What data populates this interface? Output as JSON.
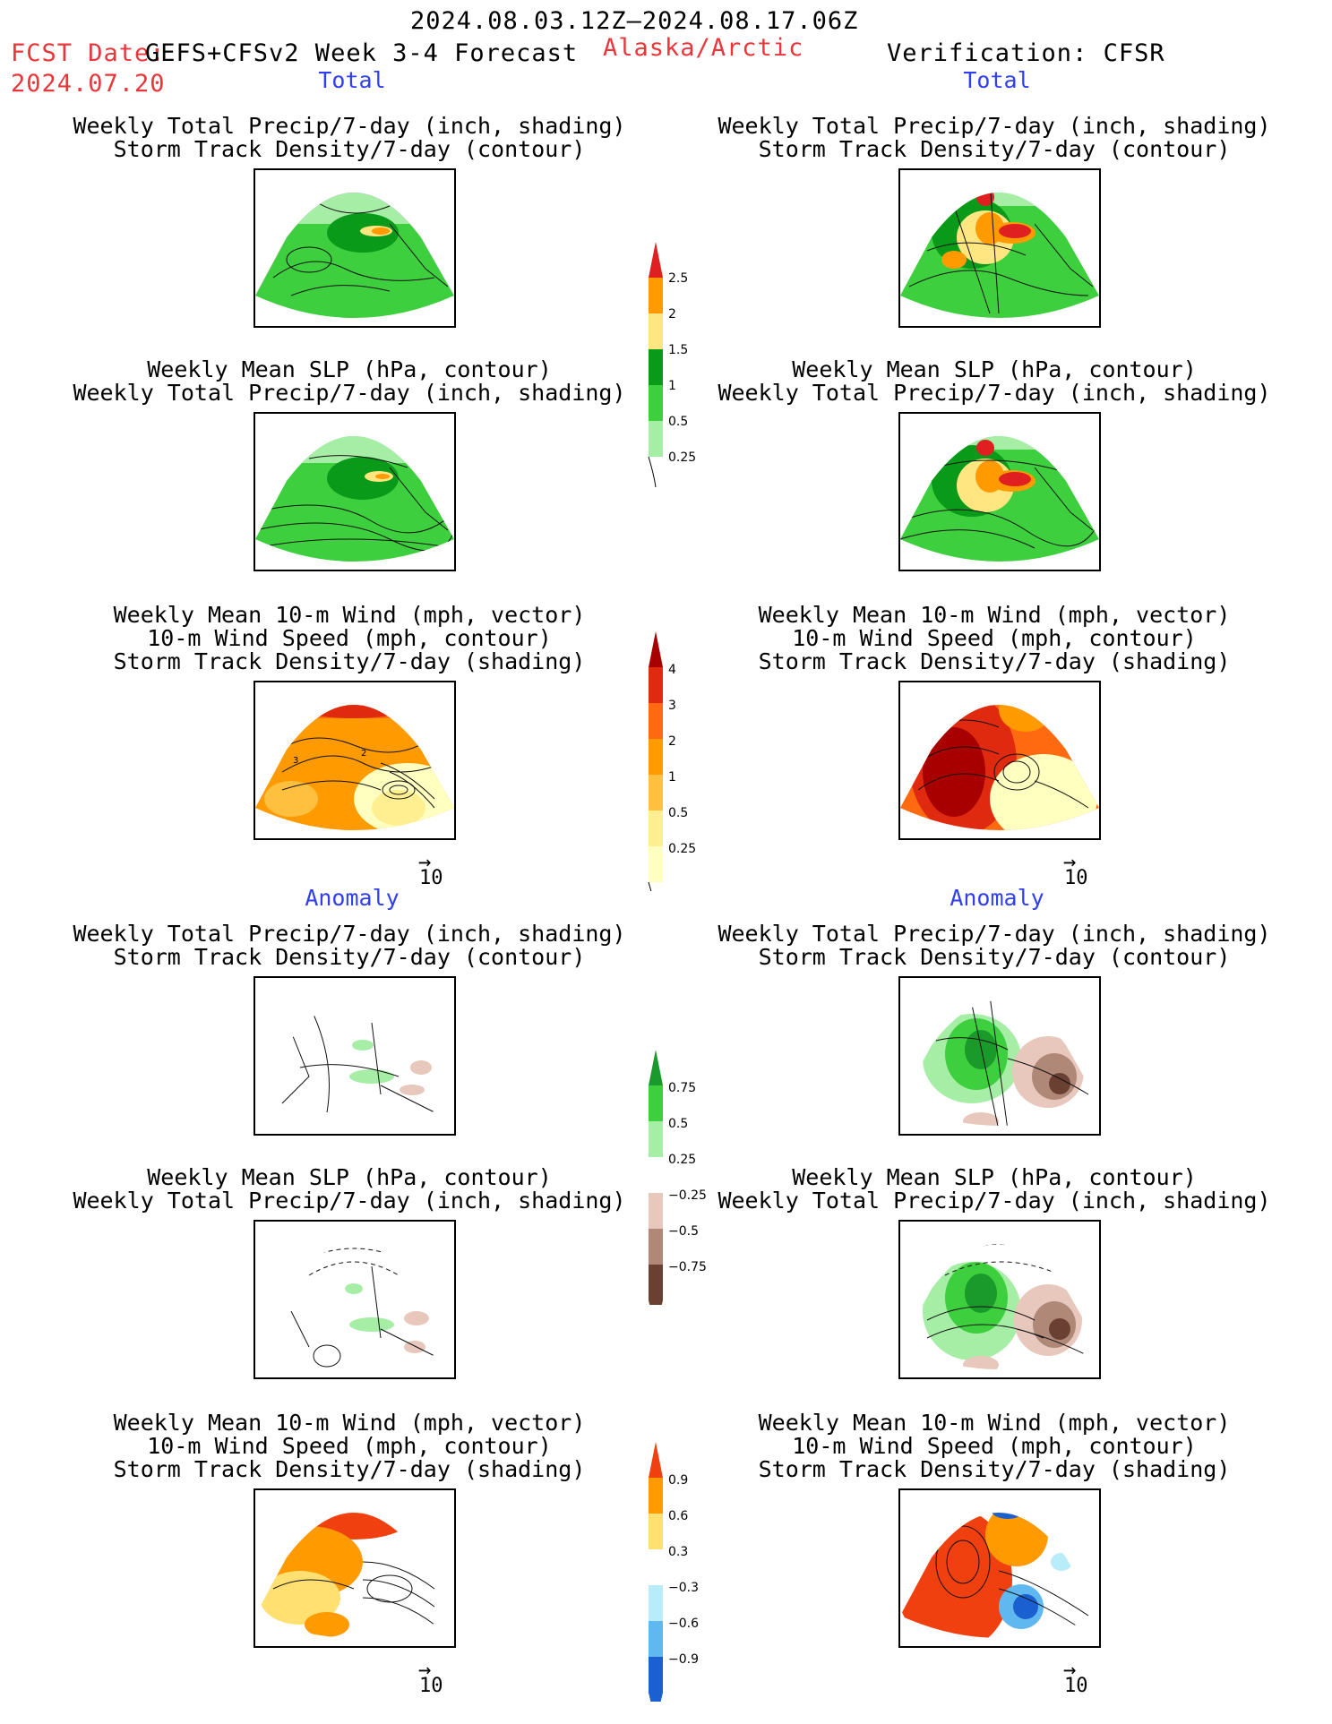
{
  "header": {
    "date_range": "2024.08.03.12Z–2024.08.17.06Z",
    "fcst_label": "FCST Date:",
    "model": "GEFS+CFSv2 Week 3-4 Forecast",
    "region": "Alaska/Arctic",
    "verification": "Verification: CFSR",
    "fcst_date": "2024.07.20"
  },
  "sections": {
    "total": "Total",
    "anomaly": "Anomaly"
  },
  "titles": {
    "precip_storm": "Weekly Total Precip/7-day (inch, shading)\nStorm Track Density/7-day (contour)",
    "slp_precip": "Weekly Mean SLP (hPa, contour)\nWeekly Total Precip/7-day (inch, shading)",
    "wind_storm": "Weekly Mean 10-m Wind (mph, vector)\n10-m Wind Speed (mph, contour)\nStorm Track Density/7-day (shading)"
  },
  "vector_ref": "10",
  "colorbars": {
    "precip_total": {
      "labels": [
        "2.5",
        "2",
        "1.5",
        "1",
        "0.5",
        "0.25"
      ],
      "colors": [
        "#e02020",
        "#ff9a00",
        "#ffe680",
        "#0a9a1a",
        "#3ecf3e",
        "#a6eea6"
      ]
    },
    "storm_total": {
      "labels": [
        "4",
        "3",
        "2",
        "1",
        "0.5",
        "0.25"
      ],
      "colors": [
        "#a80000",
        "#e02a10",
        "#ff6a10",
        "#ff9a00",
        "#ffc040",
        "#ffef90",
        "#ffffc0"
      ]
    },
    "precip_anom": {
      "labels": [
        "0.75",
        "0.5",
        "0.25",
        "−0.25",
        "−0.5",
        "−0.75"
      ],
      "colors": [
        "#1a9a2a",
        "#3ecf3e",
        "#a6eea6",
        "#ffffff",
        "#e8c8bc",
        "#b08878",
        "#6a4032"
      ]
    },
    "storm_anom": {
      "labels": [
        "0.9",
        "0.6",
        "0.3",
        "−0.3",
        "−0.6",
        "−0.9"
      ],
      "colors": [
        "#f04010",
        "#ff9a00",
        "#ffe070",
        "#ffffff",
        "#b8ecf8",
        "#60b8f0",
        "#1a60d0"
      ]
    }
  }
}
